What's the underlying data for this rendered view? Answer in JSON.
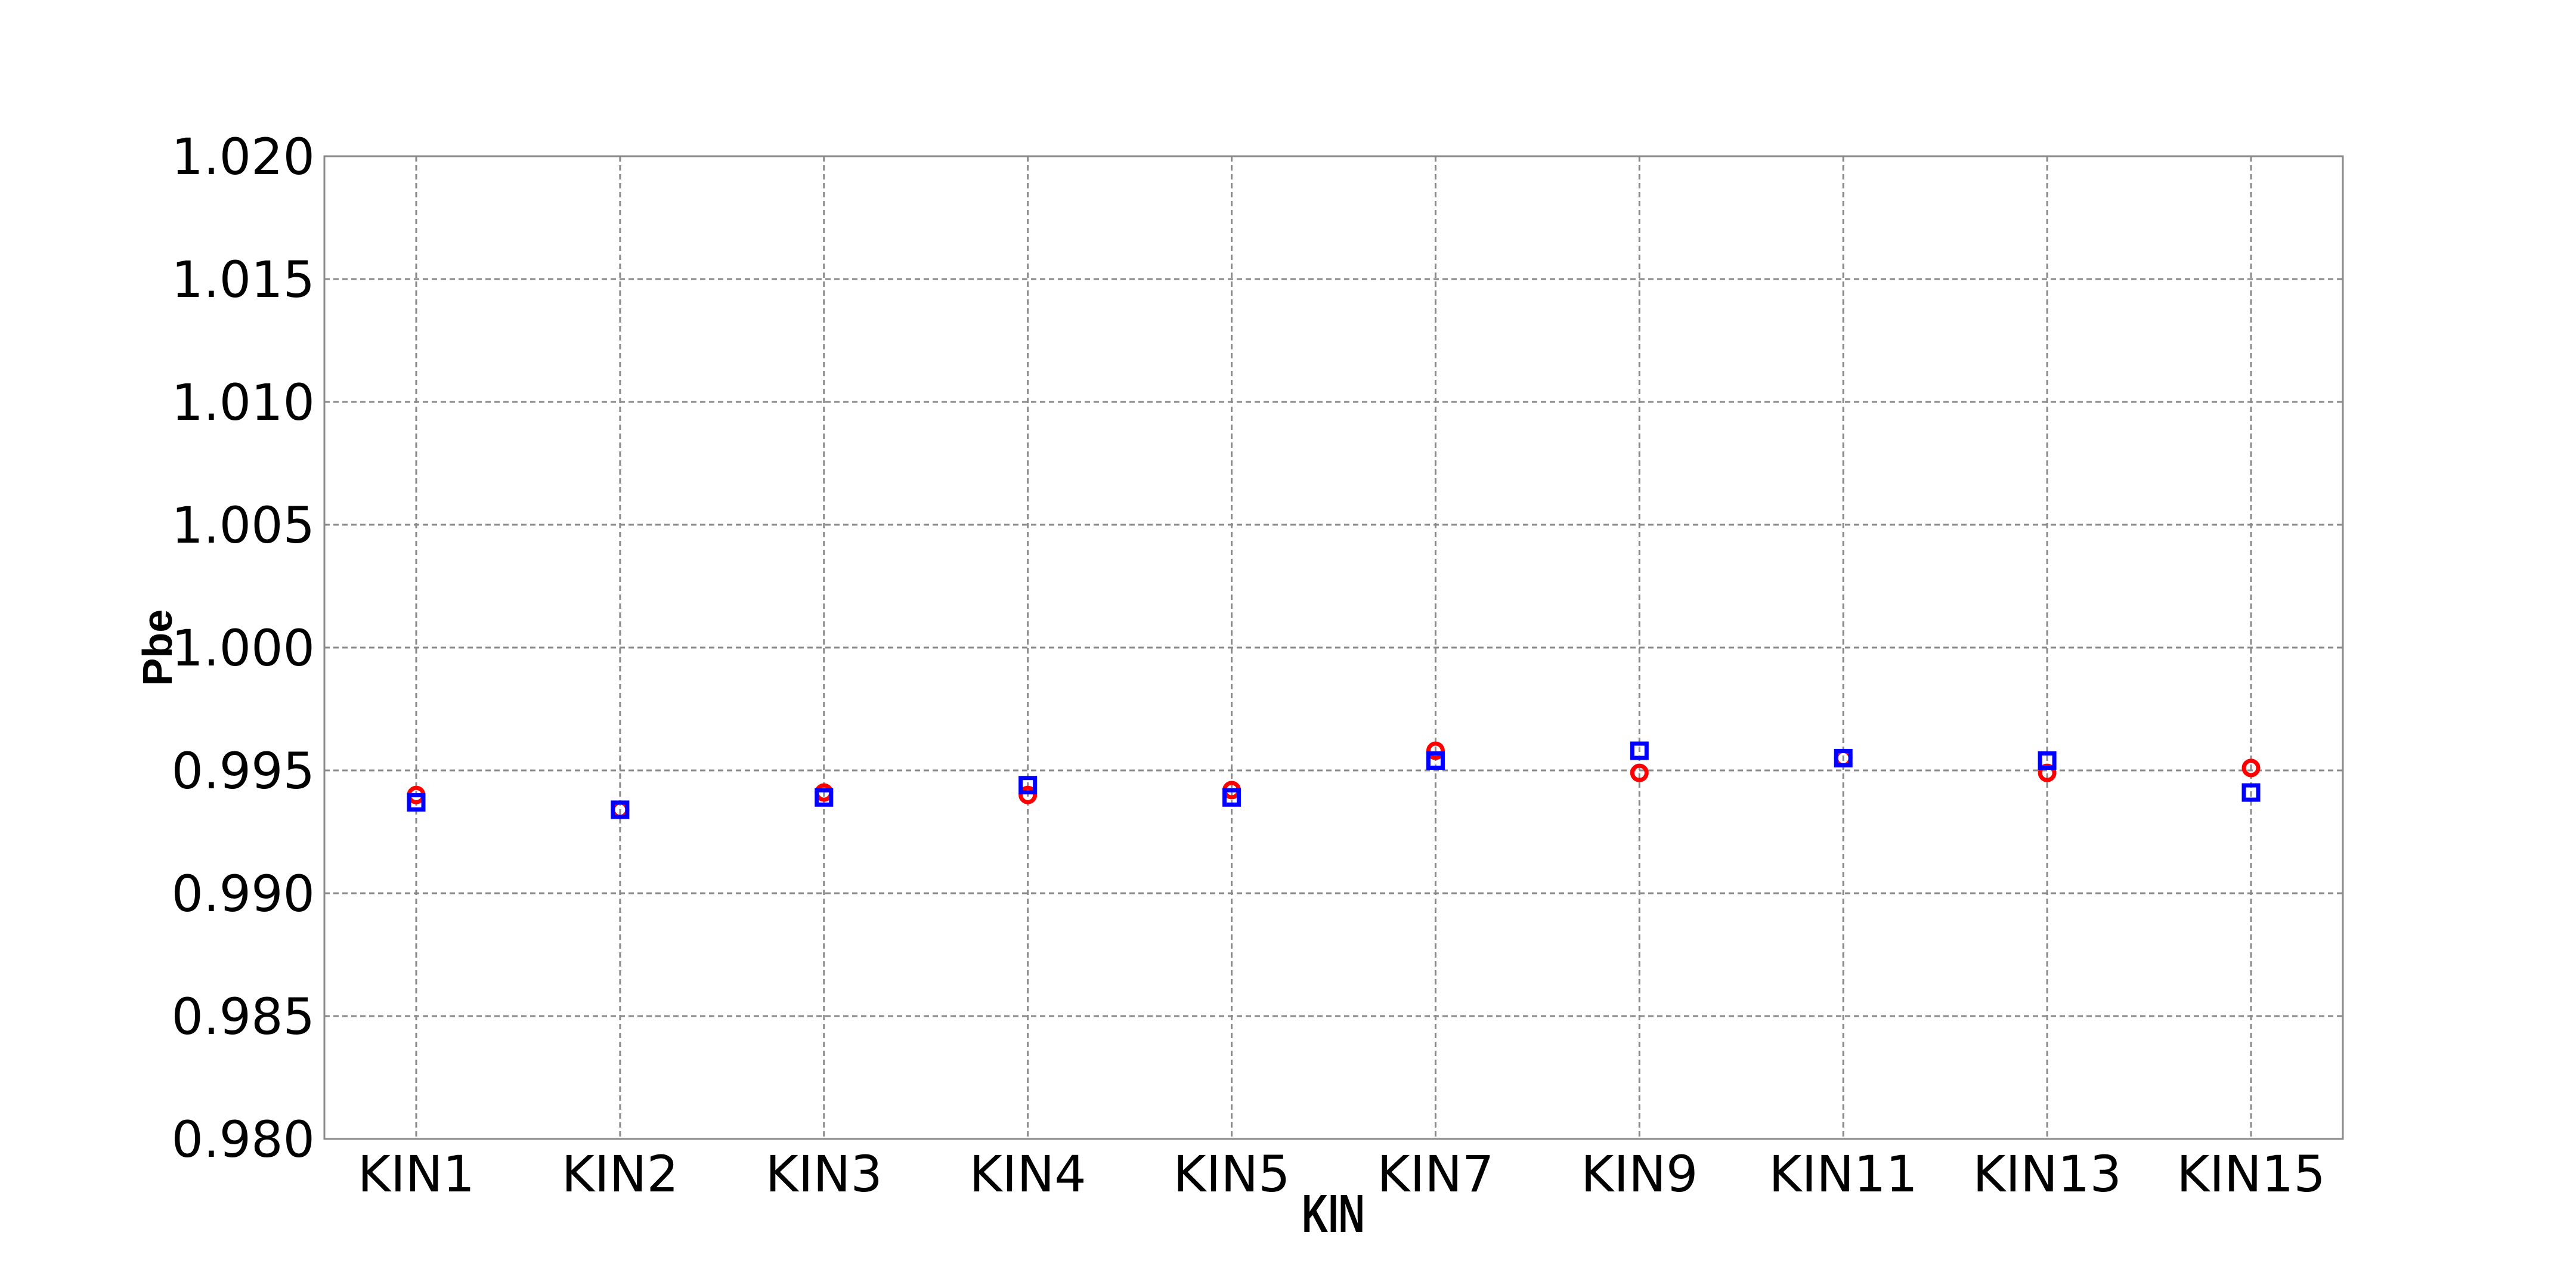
{
  "chart_data": {
    "type": "scatter",
    "title": "",
    "xlabel": "KIN",
    "ylabel": "Pbe",
    "categories": [
      "KIN1",
      "KIN2",
      "KIN3",
      "KIN4",
      "KIN5",
      "KIN7",
      "KIN9",
      "KIN11",
      "KIN13",
      "KIN15"
    ],
    "ylim": [
      0.98,
      1.02
    ],
    "yticks": [
      "0.980",
      "0.985",
      "0.990",
      "0.995",
      "1.000",
      "1.005",
      "1.010",
      "1.015",
      "1.020"
    ],
    "grid": true,
    "legend": "none",
    "series": [
      {
        "marker": "circle",
        "color": "#ff0000",
        "values": [
          0.994,
          0.9934,
          0.9941,
          0.994,
          0.9942,
          0.9958,
          0.9949,
          0.9955,
          0.9949,
          0.9951
        ]
      },
      {
        "marker": "square",
        "color": "#0000ff",
        "values": [
          0.9937,
          0.9934,
          0.9939,
          0.9944,
          0.9939,
          0.9954,
          0.9958,
          0.9955,
          0.9954,
          0.9941
        ]
      }
    ]
  }
}
